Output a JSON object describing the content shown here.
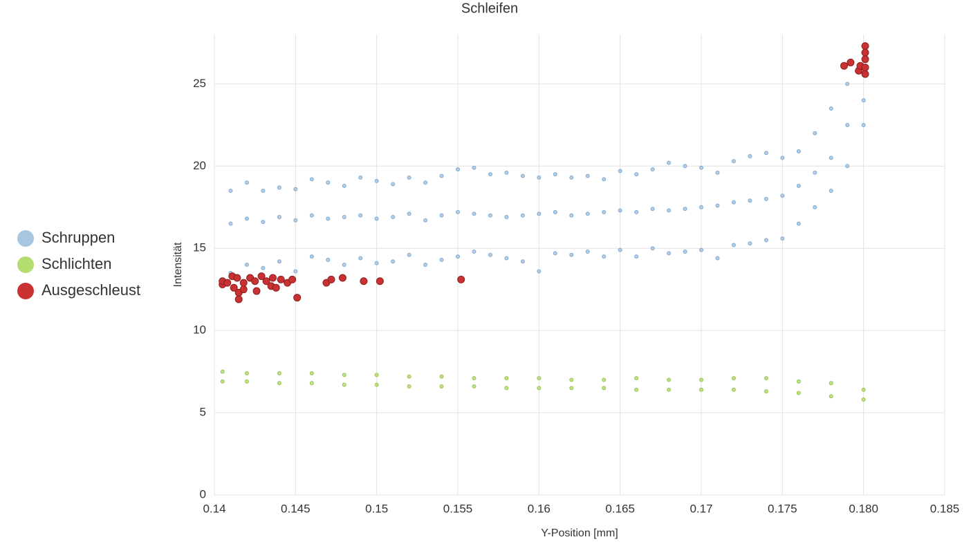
{
  "chart_data": {
    "type": "scatter",
    "title": "Schleifen",
    "x_label": "Y-Position [mm]",
    "y_label": "Intensität",
    "xlim": [
      0.14,
      0.185
    ],
    "ylim": [
      0,
      28
    ],
    "xticks": [
      0.14,
      0.145,
      0.15,
      0.155,
      0.16,
      0.165,
      0.17,
      0.175,
      {
        "value": 0.18,
        "label": "0.180"
      },
      0.185
    ],
    "yticks": [
      0,
      5,
      10,
      15,
      20,
      25
    ],
    "grid": true,
    "legend": "left",
    "series": [
      {
        "name": "Schruppen",
        "color": "#a9c6e0",
        "x": [
          0.141,
          0.141,
          0.141,
          0.142,
          0.142,
          0.142,
          0.143,
          0.143,
          0.143,
          0.144,
          0.144,
          0.144,
          0.145,
          0.145,
          0.145,
          0.146,
          0.146,
          0.146,
          0.147,
          0.147,
          0.147,
          0.148,
          0.148,
          0.148,
          0.149,
          0.149,
          0.149,
          0.15,
          0.15,
          0.15,
          0.151,
          0.151,
          0.151,
          0.152,
          0.152,
          0.152,
          0.153,
          0.153,
          0.153,
          0.154,
          0.154,
          0.154,
          0.155,
          0.155,
          0.155,
          0.156,
          0.156,
          0.156,
          0.157,
          0.157,
          0.157,
          0.158,
          0.158,
          0.158,
          0.159,
          0.159,
          0.159,
          0.16,
          0.16,
          0.16,
          0.161,
          0.161,
          0.161,
          0.162,
          0.162,
          0.162,
          0.163,
          0.163,
          0.163,
          0.164,
          0.164,
          0.164,
          0.165,
          0.165,
          0.165,
          0.166,
          0.166,
          0.166,
          0.167,
          0.167,
          0.167,
          0.168,
          0.168,
          0.168,
          0.169,
          0.169,
          0.169,
          0.17,
          0.17,
          0.17,
          0.171,
          0.171,
          0.171,
          0.172,
          0.172,
          0.172,
          0.173,
          0.173,
          0.173,
          0.174,
          0.174,
          0.174,
          0.175,
          0.175,
          0.175,
          0.176,
          0.176,
          0.176,
          0.177,
          0.177,
          0.177,
          0.178,
          0.178,
          0.178,
          0.179,
          0.179,
          0.179,
          0.18,
          0.18,
          0.18
        ],
        "y": [
          13.5,
          16.5,
          18.5,
          14.0,
          16.8,
          19.0,
          13.8,
          16.6,
          18.5,
          14.2,
          16.9,
          18.7,
          13.6,
          16.7,
          18.6,
          14.5,
          17.0,
          19.2,
          14.3,
          16.8,
          19.0,
          14.0,
          16.9,
          18.8,
          14.4,
          17.0,
          19.3,
          14.1,
          16.8,
          19.1,
          14.2,
          16.9,
          18.9,
          14.6,
          17.1,
          19.3,
          14.0,
          16.7,
          19.0,
          14.3,
          17.0,
          19.4,
          14.5,
          17.2,
          19.8,
          14.8,
          17.1,
          19.9,
          14.6,
          17.0,
          19.5,
          14.4,
          16.9,
          19.6,
          14.2,
          17.0,
          19.4,
          13.6,
          17.1,
          19.3,
          14.7,
          17.2,
          19.5,
          14.6,
          17.0,
          19.3,
          14.8,
          17.1,
          19.4,
          14.5,
          17.2,
          19.2,
          14.9,
          17.3,
          19.7,
          14.5,
          17.2,
          19.5,
          15.0,
          17.4,
          19.8,
          14.7,
          17.3,
          20.2,
          14.8,
          17.4,
          20.0,
          14.9,
          17.5,
          19.9,
          14.4,
          17.6,
          19.6,
          15.2,
          17.8,
          20.3,
          15.3,
          17.9,
          20.6,
          15.5,
          18.0,
          20.8,
          15.6,
          18.2,
          20.5,
          16.5,
          18.8,
          20.9,
          17.5,
          19.6,
          22.0,
          18.5,
          20.5,
          23.5,
          20.0,
          22.5,
          25.0,
          22.5,
          24.0,
          26.0
        ]
      },
      {
        "name": "Schlichten",
        "color": "#b5dc6e",
        "x": [
          0.1405,
          0.1405,
          0.142,
          0.142,
          0.144,
          0.144,
          0.146,
          0.146,
          0.148,
          0.148,
          0.15,
          0.15,
          0.152,
          0.152,
          0.154,
          0.154,
          0.156,
          0.156,
          0.158,
          0.158,
          0.16,
          0.16,
          0.162,
          0.162,
          0.164,
          0.164,
          0.166,
          0.166,
          0.168,
          0.168,
          0.17,
          0.17,
          0.172,
          0.172,
          0.174,
          0.174,
          0.176,
          0.176,
          0.178,
          0.178,
          0.18,
          0.18
        ],
        "y": [
          7.5,
          6.9,
          7.4,
          6.9,
          7.4,
          6.8,
          7.4,
          6.8,
          7.3,
          6.7,
          7.3,
          6.7,
          7.2,
          6.6,
          7.2,
          6.6,
          7.1,
          6.6,
          7.1,
          6.5,
          7.1,
          6.5,
          7.0,
          6.5,
          7.0,
          6.5,
          7.1,
          6.4,
          7.0,
          6.4,
          7.0,
          6.4,
          7.1,
          6.4,
          7.1,
          6.3,
          6.9,
          6.2,
          6.8,
          6.0,
          6.4,
          5.8
        ]
      },
      {
        "name": "Ausgeschleust",
        "color": "#c83232",
        "x": [
          0.1405,
          0.1405,
          0.1408,
          0.1411,
          0.1412,
          0.1414,
          0.1415,
          0.1415,
          0.1418,
          0.1418,
          0.1422,
          0.1425,
          0.1426,
          0.1429,
          0.1432,
          0.1435,
          0.1436,
          0.1438,
          0.1441,
          0.1445,
          0.1448,
          0.1451,
          0.1469,
          0.1472,
          0.1479,
          0.1492,
          0.1502,
          0.1552,
          0.1788,
          0.1792,
          0.1797,
          0.1798,
          0.1801,
          0.1801,
          0.1801,
          0.1801,
          0.1801
        ],
        "y": [
          12.8,
          13.0,
          12.9,
          13.3,
          12.6,
          13.2,
          11.9,
          12.3,
          12.5,
          12.9,
          13.2,
          13.0,
          12.4,
          13.3,
          13.0,
          12.7,
          13.2,
          12.6,
          13.1,
          12.9,
          13.1,
          12.0,
          12.9,
          13.1,
          13.2,
          13.0,
          13.0,
          13.1,
          26.1,
          26.3,
          25.8,
          26.1,
          27.3,
          26.9,
          26.5,
          26.0,
          25.6
        ]
      }
    ]
  }
}
